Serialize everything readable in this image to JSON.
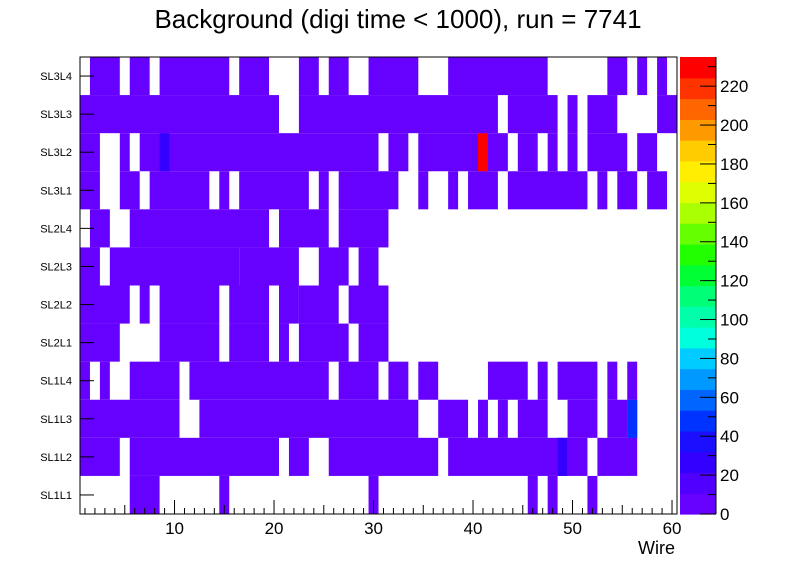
{
  "chart_data": {
    "type": "heatmap",
    "title": "Background (digi time < 1000), run = 7741",
    "xlabel": "Wire",
    "ylabel": "",
    "x_range": [
      0.5,
      60.5
    ],
    "x_ticks": [
      10,
      20,
      30,
      40,
      50,
      60
    ],
    "y_categories": [
      "SL1L1",
      "SL1L2",
      "SL1L3",
      "SL1L4",
      "SL2L1",
      "SL2L2",
      "SL2L3",
      "SL2L4",
      "SL3L1",
      "SL3L2",
      "SL3L3",
      "SL3L4"
    ],
    "colorbar": {
      "range": [
        0,
        235
      ],
      "ticks": [
        0,
        20,
        40,
        60,
        80,
        100,
        120,
        140,
        160,
        180,
        200,
        220
      ],
      "palette": [
        "#6600ff",
        "#5000ff",
        "#3300ff",
        "#1a10ff",
        "#0033ff",
        "#0066ff",
        "#0099ff",
        "#00ccff",
        "#00ffdd",
        "#00ffaa",
        "#00ff77",
        "#00ff33",
        "#22ff00",
        "#66ff00",
        "#aaff00",
        "#ddff00",
        "#ffee00",
        "#ffcc00",
        "#ff9900",
        "#ff6600",
        "#ff3300",
        "#ff0000"
      ]
    },
    "cell_color": "#6600ff",
    "rows": [
      {
        "layer": "SL1L1",
        "runs": [
          [
            6,
            8
          ],
          [
            15,
            15
          ],
          [
            30,
            30
          ],
          [
            46,
            46
          ],
          [
            48,
            48
          ],
          [
            52,
            52
          ]
        ],
        "highlights": []
      },
      {
        "layer": "SL1L2",
        "runs": [
          [
            1,
            4
          ],
          [
            6,
            20
          ],
          [
            22,
            23
          ],
          [
            26,
            36
          ],
          [
            38,
            48
          ],
          [
            49,
            49
          ],
          [
            50,
            51
          ],
          [
            53,
            56
          ]
        ],
        "highlights": [
          {
            "wire": 49,
            "value": 30
          }
        ]
      },
      {
        "layer": "SL1L3",
        "runs": [
          [
            1,
            10
          ],
          [
            13,
            34
          ],
          [
            37,
            39
          ],
          [
            41,
            41
          ],
          [
            43,
            43
          ],
          [
            45,
            47
          ],
          [
            50,
            52
          ],
          [
            54,
            55
          ],
          [
            56,
            56
          ]
        ],
        "highlights": [
          {
            "wire": 56,
            "value": 45
          }
        ]
      },
      {
        "layer": "SL1L4",
        "runs": [
          [
            1,
            1
          ],
          [
            3,
            3
          ],
          [
            6,
            10
          ],
          [
            12,
            25
          ],
          [
            27,
            30
          ],
          [
            32,
            33
          ],
          [
            35,
            36
          ],
          [
            42,
            45
          ],
          [
            47,
            47
          ],
          [
            49,
            52
          ],
          [
            54,
            54
          ],
          [
            56,
            56
          ]
        ],
        "highlights": []
      },
      {
        "layer": "SL2L1",
        "runs": [
          [
            1,
            4
          ],
          [
            9,
            14
          ],
          [
            16,
            19
          ],
          [
            21,
            21
          ],
          [
            23,
            27
          ],
          [
            29,
            31
          ]
        ],
        "highlights": []
      },
      {
        "layer": "SL2L2",
        "runs": [
          [
            1,
            5
          ],
          [
            7,
            7
          ],
          [
            9,
            14
          ],
          [
            16,
            19
          ],
          [
            21,
            22
          ],
          [
            23,
            26
          ],
          [
            28,
            31
          ]
        ],
        "highlights": []
      },
      {
        "layer": "SL2L3",
        "runs": [
          [
            1,
            2
          ],
          [
            4,
            16
          ],
          [
            17,
            22
          ],
          [
            25,
            27
          ],
          [
            29,
            30
          ]
        ],
        "highlights": []
      },
      {
        "layer": "SL2L4",
        "runs": [
          [
            2,
            3
          ],
          [
            6,
            19
          ],
          [
            21,
            25
          ],
          [
            27,
            31
          ]
        ],
        "highlights": []
      },
      {
        "layer": "SL3L1",
        "runs": [
          [
            1,
            2
          ],
          [
            5,
            6
          ],
          [
            8,
            13
          ],
          [
            15,
            15
          ],
          [
            17,
            20
          ],
          [
            21,
            23
          ],
          [
            25,
            25
          ],
          [
            27,
            32
          ],
          [
            35,
            35
          ],
          [
            38,
            38
          ],
          [
            40,
            42
          ],
          [
            44,
            51
          ],
          [
            53,
            53
          ],
          [
            55,
            56
          ],
          [
            58,
            59
          ]
        ],
        "highlights": []
      },
      {
        "layer": "SL3L2",
        "runs": [
          [
            1,
            2
          ],
          [
            5,
            5
          ],
          [
            7,
            30
          ],
          [
            32,
            33
          ],
          [
            35,
            43
          ],
          [
            45,
            46
          ],
          [
            48,
            48
          ],
          [
            50,
            50
          ],
          [
            52,
            55
          ],
          [
            57,
            58
          ]
        ],
        "highlights": [
          {
            "wire": 9,
            "value": 30
          },
          {
            "wire": 41,
            "value": 233
          }
        ]
      },
      {
        "layer": "SL3L3",
        "runs": [
          [
            1,
            20
          ],
          [
            23,
            42
          ],
          [
            44,
            48
          ],
          [
            50,
            50
          ],
          [
            52,
            54
          ],
          [
            59,
            60
          ]
        ],
        "highlights": []
      },
      {
        "layer": "SL3L4",
        "runs": [
          [
            2,
            4
          ],
          [
            6,
            7
          ],
          [
            9,
            15
          ],
          [
            17,
            19
          ],
          [
            23,
            24
          ],
          [
            26,
            27
          ],
          [
            30,
            34
          ],
          [
            38,
            47
          ],
          [
            54,
            55
          ],
          [
            57,
            57
          ],
          [
            59,
            59
          ]
        ],
        "highlights": []
      }
    ]
  }
}
